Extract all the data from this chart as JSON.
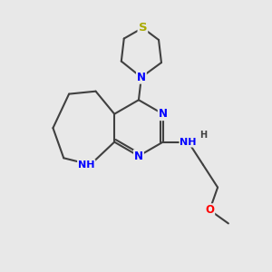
{
  "bg_color": "#e8e8e8",
  "atom_colors": {
    "N": "#0000FF",
    "S": "#AAAA00",
    "O": "#FF0000",
    "C": "#404040",
    "H": "#404040"
  },
  "bond_color": "#404040",
  "bond_width": 1.5,
  "font_size_atom": 8.5
}
